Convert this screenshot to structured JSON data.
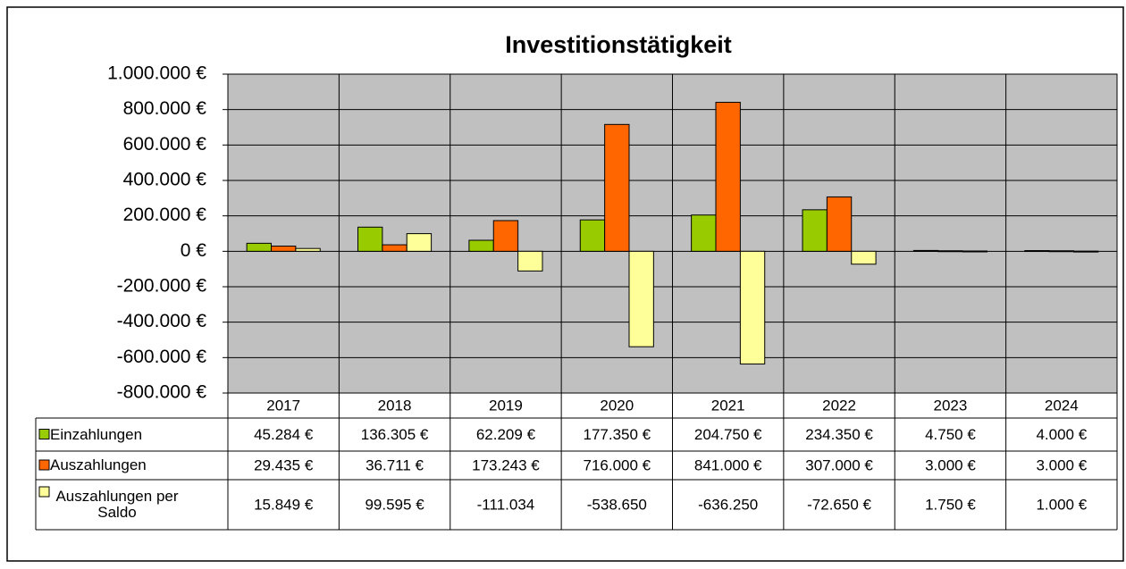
{
  "chart_data": {
    "type": "bar",
    "title": "Investitionstätigkeit",
    "categories": [
      "2017",
      "2018",
      "2019",
      "2020",
      "2021",
      "2022",
      "2023",
      "2024"
    ],
    "series": [
      {
        "name": "Einzahlungen",
        "color": "#99cc00",
        "values": [
          45284,
          136305,
          62209,
          177350,
          204750,
          234350,
          4750,
          4000
        ],
        "value_labels": [
          "45.284 €",
          "136.305 €",
          "62.209 €",
          "177.350 €",
          "204.750 €",
          "234.350 €",
          "4.750 €",
          "4.000 €"
        ]
      },
      {
        "name": "Auszahlungen",
        "color": "#ff6600",
        "values": [
          29435,
          36711,
          173243,
          716000,
          841000,
          307000,
          3000,
          3000
        ],
        "value_labels": [
          "29.435 €",
          "36.711 €",
          "173.243 €",
          "716.000 €",
          "841.000 €",
          "307.000 €",
          "3.000 €",
          "3.000 €"
        ]
      },
      {
        "name": "Auszahlungen per Saldo",
        "color": "#ffff99",
        "values": [
          15849,
          99595,
          -111034,
          -538650,
          -636250,
          -72650,
          1750,
          1000
        ],
        "value_labels": [
          "15.849 €",
          "99.595 €",
          "-111.034",
          "-538.650",
          "-636.250",
          "-72.650 €",
          "1.750 €",
          "1.000 €"
        ]
      }
    ],
    "ylim": [
      -800000,
      1000000
    ],
    "yticks": [
      {
        "value": 1000000,
        "label": "1.000.000 €"
      },
      {
        "value": 800000,
        "label": "800.000 €"
      },
      {
        "value": 600000,
        "label": "600.000 €"
      },
      {
        "value": 400000,
        "label": "400.000 €"
      },
      {
        "value": 200000,
        "label": "200.000 €"
      },
      {
        "value": 0,
        "label": "0 €"
      },
      {
        "value": -200000,
        "label": "-200.000 €"
      },
      {
        "value": -400000,
        "label": "-400.000 €"
      },
      {
        "value": -600000,
        "label": "-600.000 €"
      },
      {
        "value": -800000,
        "label": "-800.000 €"
      }
    ],
    "grid": true
  }
}
